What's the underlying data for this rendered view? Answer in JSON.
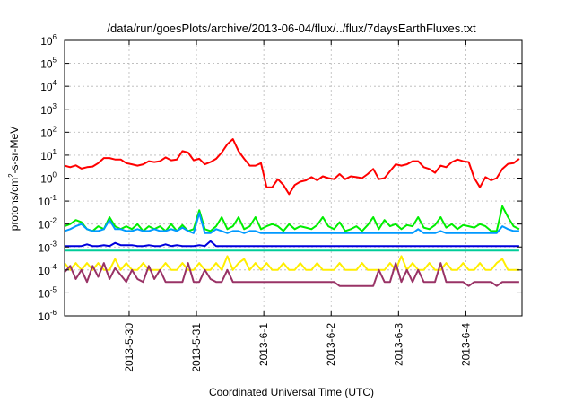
{
  "chart_data": {
    "type": "line",
    "title": "/data/run/goesPlots/archive/2013-06-04/flux/../flux/7daysEarthFluxes.txt",
    "xlabel": "Coordinated Universal Time (UTC)",
    "ylabel_parts": [
      "protons/cm",
      "2",
      "-s-sr-MeV"
    ],
    "y_scale": "log",
    "ylim": [
      1e-06,
      1000000.0
    ],
    "y_ticks": [
      {
        "base": "10",
        "exp": "-6",
        "value": 1e-06
      },
      {
        "base": "10",
        "exp": "-5",
        "value": 1e-05
      },
      {
        "base": "10",
        "exp": "-4",
        "value": 0.0001
      },
      {
        "base": "10",
        "exp": "-3",
        "value": 0.001
      },
      {
        "base": "10",
        "exp": "-2",
        "value": 0.01
      },
      {
        "base": "10",
        "exp": "-1",
        "value": 0.1
      },
      {
        "base": "10",
        "exp": "0",
        "value": 1
      },
      {
        "base": "10",
        "exp": "1",
        "value": 10
      },
      {
        "base": "10",
        "exp": "2",
        "value": 100
      },
      {
        "base": "10",
        "exp": "3",
        "value": 1000
      },
      {
        "base": "10",
        "exp": "4",
        "value": 10000
      },
      {
        "base": "10",
        "exp": "5",
        "value": 100000
      },
      {
        "base": "10",
        "exp": "6",
        "value": 1000000
      }
    ],
    "xlim": [
      "2013-05-29T01:00",
      "2013-06-04T20:00"
    ],
    "x_ticks": [
      "2013-5-30",
      "2013-5-31",
      "2013-6-1",
      "2013-6-2",
      "2013-6-3",
      "2013-6-4"
    ],
    "grid": true,
    "legend": "none",
    "x_times": [
      "2013-05-29T01:00",
      "2013-05-29T03:00",
      "2013-05-29T05:00",
      "2013-05-29T07:00",
      "2013-05-29T09:00",
      "2013-05-29T11:00",
      "2013-05-29T13:00",
      "2013-05-29T15:00",
      "2013-05-29T17:00",
      "2013-05-29T19:00",
      "2013-05-29T21:00",
      "2013-05-29T23:00",
      "2013-05-30T01:00",
      "2013-05-30T03:00",
      "2013-05-30T05:00",
      "2013-05-30T07:00",
      "2013-05-30T09:00",
      "2013-05-30T11:00",
      "2013-05-30T13:00",
      "2013-05-30T15:00",
      "2013-05-30T17:00",
      "2013-05-30T19:00",
      "2013-05-30T21:00",
      "2013-05-30T23:00",
      "2013-05-31T01:00",
      "2013-05-31T03:00",
      "2013-05-31T05:00",
      "2013-05-31T07:00",
      "2013-05-31T09:00",
      "2013-05-31T11:00",
      "2013-05-31T13:00",
      "2013-05-31T15:00",
      "2013-05-31T17:00",
      "2013-05-31T19:00",
      "2013-05-31T21:00",
      "2013-05-31T23:00",
      "2013-06-01T01:00",
      "2013-06-01T03:00",
      "2013-06-01T05:00",
      "2013-06-01T07:00",
      "2013-06-01T09:00",
      "2013-06-01T11:00",
      "2013-06-01T13:00",
      "2013-06-01T15:00",
      "2013-06-01T17:00",
      "2013-06-01T19:00",
      "2013-06-01T21:00",
      "2013-06-01T23:00",
      "2013-06-02T01:00",
      "2013-06-02T03:00",
      "2013-06-02T05:00",
      "2013-06-02T07:00",
      "2013-06-02T09:00",
      "2013-06-02T11:00",
      "2013-06-02T13:00",
      "2013-06-02T15:00",
      "2013-06-02T17:00",
      "2013-06-02T19:00",
      "2013-06-02T21:00",
      "2013-06-02T23:00",
      "2013-06-03T01:00",
      "2013-06-03T03:00",
      "2013-06-03T05:00",
      "2013-06-03T07:00",
      "2013-06-03T09:00",
      "2013-06-03T11:00",
      "2013-06-03T13:00",
      "2013-06-03T15:00",
      "2013-06-03T17:00",
      "2013-06-03T19:00",
      "2013-06-03T21:00",
      "2013-06-03T23:00",
      "2013-06-04T01:00",
      "2013-06-04T03:00",
      "2013-06-04T05:00",
      "2013-06-04T07:00",
      "2013-06-04T09:00",
      "2013-06-04T11:00",
      "2013-06-04T13:00",
      "2013-06-04T15:00",
      "2013-06-04T17:00",
      "2013-06-04T19:00"
    ],
    "series": [
      {
        "color": "#ff0000",
        "values": [
          3.5,
          3,
          3.6,
          2.6,
          3,
          3.2,
          4.5,
          7.5,
          7.5,
          6.5,
          6.5,
          4.5,
          4,
          3.5,
          4,
          5.5,
          5,
          5.5,
          8,
          6,
          6.5,
          15,
          13,
          6,
          7,
          4,
          5,
          7,
          13,
          30,
          50,
          15,
          7,
          3.5,
          3.5,
          4.5,
          0.4,
          0.4,
          0.9,
          0.5,
          0.2,
          0.5,
          0.7,
          0.8,
          1.1,
          0.8,
          1.2,
          1.0,
          0.9,
          1.5,
          0.9,
          1.2,
          1.1,
          1.0,
          1.5,
          2.5,
          0.9,
          1.0,
          2,
          4,
          3.5,
          4,
          5.5,
          5.5,
          3.0,
          2.5,
          1.7,
          3.5,
          3,
          5,
          6.5,
          5.5,
          5,
          1.0,
          0.4,
          1.1,
          0.8,
          1.0,
          2.5,
          4.2,
          4.5,
          7
        ]
      },
      {
        "color": "#00ee00",
        "values": [
          0.008,
          0.01,
          0.015,
          0.012,
          0.006,
          0.005,
          0.008,
          0.006,
          0.02,
          0.008,
          0.006,
          0.008,
          0.006,
          0.01,
          0.005,
          0.008,
          0.006,
          0.008,
          0.005,
          0.01,
          0.005,
          0.009,
          0.005,
          0.006,
          0.04,
          0.006,
          0.005,
          0.008,
          0.02,
          0.006,
          0.008,
          0.02,
          0.006,
          0.008,
          0.02,
          0.006,
          0.008,
          0.01,
          0.008,
          0.005,
          0.01,
          0.006,
          0.008,
          0.007,
          0.006,
          0.009,
          0.02,
          0.008,
          0.006,
          0.012,
          0.005,
          0.006,
          0.008,
          0.005,
          0.009,
          0.02,
          0.006,
          0.015,
          0.008,
          0.01,
          0.006,
          0.009,
          0.008,
          0.02,
          0.007,
          0.006,
          0.009,
          0.02,
          0.007,
          0.01,
          0.006,
          0.009,
          0.008,
          0.007,
          0.01,
          0.008,
          0.005,
          0.005,
          0.06,
          0.02,
          0.008,
          0.006
        ]
      },
      {
        "color": "#0099ff",
        "values": [
          0.005,
          0.006,
          0.008,
          0.01,
          0.006,
          0.005,
          0.005,
          0.006,
          0.015,
          0.006,
          0.006,
          0.005,
          0.005,
          0.006,
          0.005,
          0.005,
          0.006,
          0.005,
          0.005,
          0.006,
          0.005,
          0.007,
          0.005,
          0.004,
          0.03,
          0.004,
          0.004,
          0.006,
          0.005,
          0.004,
          0.005,
          0.005,
          0.004,
          0.005,
          0.005,
          0.004,
          0.004,
          0.004,
          0.004,
          0.004,
          0.004,
          0.004,
          0.004,
          0.004,
          0.004,
          0.004,
          0.004,
          0.004,
          0.004,
          0.004,
          0.004,
          0.004,
          0.004,
          0.004,
          0.004,
          0.004,
          0.004,
          0.004,
          0.004,
          0.004,
          0.004,
          0.004,
          0.004,
          0.006,
          0.004,
          0.004,
          0.004,
          0.005,
          0.004,
          0.004,
          0.004,
          0.004,
          0.004,
          0.004,
          0.004,
          0.004,
          0.004,
          0.004,
          0.008,
          0.006,
          0.005,
          0.005
        ]
      },
      {
        "color": "#0000dd",
        "values": [
          0.0011,
          0.0011,
          0.0011,
          0.0011,
          0.0013,
          0.0011,
          0.0011,
          0.0012,
          0.0011,
          0.0015,
          0.0012,
          0.0012,
          0.0012,
          0.0011,
          0.0011,
          0.0012,
          0.0011,
          0.0011,
          0.0013,
          0.0011,
          0.0012,
          0.0011,
          0.0011,
          0.0011,
          0.0012,
          0.0011,
          0.0018,
          0.0011,
          0.0011,
          0.0011,
          0.0011,
          0.0011,
          0.0011,
          0.0011,
          0.0011,
          0.0011,
          0.0011,
          0.0011,
          0.0011,
          0.0011,
          0.0011,
          0.0011,
          0.0011,
          0.0011,
          0.0011,
          0.0011,
          0.0011,
          0.0011,
          0.0011,
          0.0011,
          0.0011,
          0.0011,
          0.0011,
          0.0011,
          0.0011,
          0.0011,
          0.0011,
          0.0011,
          0.0011,
          0.0011,
          0.0011,
          0.0011,
          0.0011,
          0.0011,
          0.0011,
          0.0011,
          0.0011,
          0.0011,
          0.0011,
          0.0011,
          0.0011,
          0.0011,
          0.0011,
          0.0011,
          0.0011,
          0.0011,
          0.0011,
          0.0011,
          0.0011,
          0.0011,
          0.0011,
          0.0011
        ]
      },
      {
        "color": "#00cc99",
        "values": [
          0.0007,
          0.0007,
          0.0007,
          0.0007,
          0.0007,
          0.0007,
          0.0007,
          0.0007,
          0.0007,
          0.0007,
          0.0007,
          0.0007,
          0.0007,
          0.0007,
          0.0007,
          0.0007,
          0.0007,
          0.0007,
          0.0007,
          0.0007,
          0.0007,
          0.0007,
          0.0007,
          0.0007,
          0.0007,
          0.0007,
          0.0007,
          0.0007,
          0.0007,
          0.0007,
          0.0007,
          0.0007,
          0.0007,
          0.0007,
          0.0007,
          0.0007,
          0.0007,
          0.0007,
          0.0007,
          0.0007,
          0.0007,
          0.0007,
          0.0007,
          0.0007,
          0.0007,
          0.0007,
          0.0007,
          0.0007,
          0.0007,
          0.0007,
          0.0007,
          0.0007,
          0.0007,
          0.0007,
          0.0007,
          0.0007,
          0.0007,
          0.0007,
          0.0007,
          0.0007,
          0.0007,
          0.0007,
          0.0007,
          0.0007,
          0.0007,
          0.0007,
          0.0007,
          0.0007,
          0.0007,
          0.0007,
          0.0007,
          0.0007,
          0.0007,
          0.0007,
          0.0007,
          0.0007,
          0.0007,
          0.0007,
          0.0007,
          0.0007,
          0.0007,
          0.0007
        ]
      },
      {
        "color": "#ffee00",
        "values": [
          0.0002,
          0.0001,
          0.0002,
          0.0001,
          0.0002,
          0.0001,
          0.0002,
          0.0001,
          0.0001,
          0.0003,
          0.0001,
          0.0002,
          0.0001,
          0.0001,
          0.0002,
          0.0001,
          0.0001,
          0.0001,
          0.0002,
          0.0001,
          0.0001,
          0.0002,
          0.0001,
          0.0001,
          0.0002,
          0.0001,
          0.0001,
          0.0002,
          0.0001,
          0.0004,
          0.0001,
          0.0002,
          0.0003,
          0.0001,
          0.0002,
          0.0001,
          0.0002,
          0.0001,
          0.0001,
          0.0002,
          0.0001,
          0.0001,
          0.0002,
          0.0001,
          0.0001,
          0.0002,
          0.0001,
          0.0001,
          0.0001,
          0.0002,
          0.0001,
          0.0001,
          0.0001,
          0.0002,
          0.0001,
          0.0001,
          0.0001,
          0.0001,
          0.0002,
          0.0001,
          0.0004,
          0.0001,
          0.0002,
          0.0001,
          0.0001,
          0.0002,
          0.0001,
          0.0001,
          0.0002,
          0.0001,
          0.0001,
          0.0002,
          0.0001,
          0.0001,
          0.0002,
          0.0001,
          0.0001,
          0.0002,
          0.0003,
          0.0001,
          0.0001,
          0.0001
        ]
      },
      {
        "color": "#993366",
        "values": [
          8e-05,
          0.00015,
          4e-05,
          0.0001,
          3e-05,
          0.00015,
          5e-05,
          0.0002,
          4e-05,
          0.00012,
          6e-05,
          3e-05,
          0.0001,
          4e-05,
          3e-05,
          0.00015,
          4e-05,
          0.0001,
          3e-05,
          3e-05,
          3e-05,
          3e-05,
          0.0002,
          3e-05,
          3e-05,
          0.0001,
          4e-05,
          3e-05,
          3e-05,
          0.0001,
          3e-05,
          3e-05,
          3e-05,
          3e-05,
          3e-05,
          3e-05,
          3e-05,
          3e-05,
          3e-05,
          3e-05,
          3e-05,
          3e-05,
          3e-05,
          3e-05,
          3e-05,
          3e-05,
          3e-05,
          3e-05,
          3e-05,
          2e-05,
          2e-05,
          2e-05,
          2e-05,
          2e-05,
          2e-05,
          2e-05,
          0.0001,
          3e-05,
          3e-05,
          0.0002,
          3e-05,
          0.0001,
          3e-05,
          0.0001,
          3e-05,
          3e-05,
          3e-05,
          0.0002,
          3e-05,
          3e-05,
          3e-05,
          3e-05,
          2e-05,
          3e-05,
          3e-05,
          3e-05,
          3e-05,
          2e-05,
          3e-05,
          3e-05,
          3e-05,
          3e-05
        ]
      }
    ]
  }
}
